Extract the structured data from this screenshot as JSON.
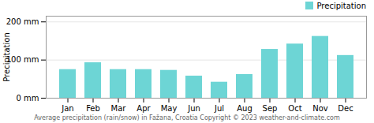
{
  "chart_data": {
    "type": "bar",
    "categories": [
      "Jan",
      "Feb",
      "Mar",
      "Apr",
      "May",
      "Jun",
      "Jul",
      "Aug",
      "Sep",
      "Oct",
      "Nov",
      "Dec"
    ],
    "series": [
      {
        "name": "Precipitation",
        "color": "#6dd5d5",
        "values": [
          75,
          93,
          75,
          75,
          73,
          58,
          42,
          62,
          128,
          142,
          162,
          112
        ]
      }
    ],
    "ylabel": "Precipitation",
    "ylim": [
      0,
      215
    ],
    "yticks": [
      {
        "value": 0,
        "label": "0 mm"
      },
      {
        "value": 100,
        "label": "100 mm"
      },
      {
        "value": 200,
        "label": "200 mm"
      }
    ],
    "grid": true,
    "legend": "upper right",
    "annotations": [
      "Average precipitation (rain/snow) in Fažana, Croatia   Copyright © 2023  weather-and-climate.com"
    ]
  }
}
